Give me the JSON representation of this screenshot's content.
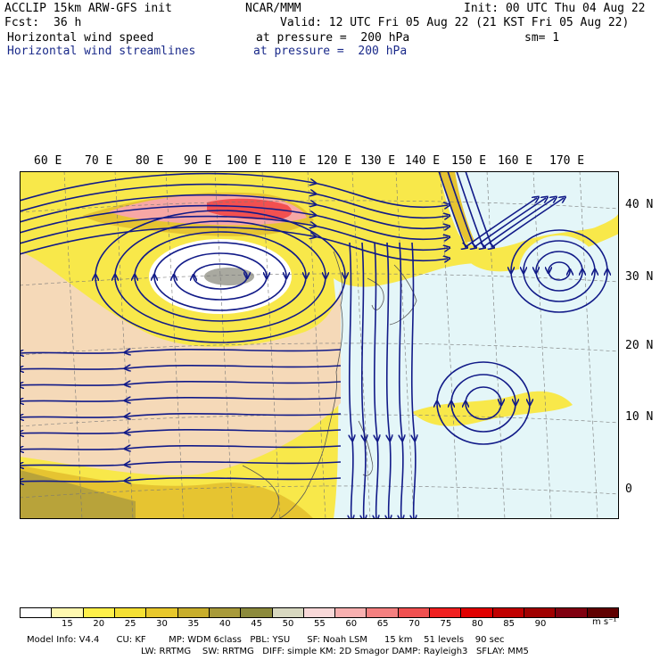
{
  "header": {
    "model": "ACCLIP 15km ARW-GFS init",
    "center": "NCAR/MMM",
    "init": "Init: 00 UTC Thu 04 Aug 22",
    "fcst_label": "Fcst:",
    "fcst_value": "36 h",
    "valid": "Valid: 12 UTC Fri 05 Aug 22 (21 KST Fri 05 Aug 22)",
    "field1_name": "Horizontal wind speed",
    "field1_level": "at pressure =  200 hPa",
    "field1_sm": "sm= 1",
    "field2_name": "Horizontal wind streamlines",
    "field2_level": "at pressure =  200 hPa"
  },
  "map": {
    "lon_labels": [
      "60 E",
      "70 E",
      "80 E",
      "90 E",
      "100 E",
      "110 E",
      "120 E",
      "130 E",
      "140 E",
      "150 E",
      "160 E",
      "170 E"
    ],
    "lat_labels": [
      "40 N",
      "30 N",
      "20 N",
      "10 N",
      "0"
    ],
    "colors": {
      "calm": "#ffffff",
      "light": "#e4f6f8",
      "tan": "#f5d9b8",
      "yellow": "#f8e84a",
      "gold": "#e6c431",
      "olive": "#b8a33a",
      "pink": "#f7a7a5",
      "red": "#f25050",
      "gray": "#a9a9a0",
      "streamline": "#111a88"
    }
  },
  "colorbar": {
    "colors": [
      "#ffffff",
      "#fff8b0",
      "#fff04a",
      "#f5e033",
      "#e8c82c",
      "#c8ae2c",
      "#a89a3a",
      "#8c8a3c",
      "#d8d8c0",
      "#f8d8d8",
      "#f8b0b0",
      "#f48080",
      "#f05050",
      "#f02020",
      "#e00000",
      "#c00000",
      "#a00000",
      "#800010",
      "#600000"
    ],
    "ticks": [
      "15",
      "20",
      "25",
      "30",
      "35",
      "40",
      "45",
      "50",
      "55",
      "60",
      "65",
      "70",
      "75",
      "80",
      "85",
      "90"
    ],
    "units": "m s⁻¹"
  },
  "footer": {
    "line1": "Model Info: V4.4      CU: KF        MP: WDM 6class   PBL: YSU      SF: Noah LSM      15 km    51 levels    90 sec",
    "line2": "LW: RRTMG    SW: RRTMG   DIFF: simple KM: 2D Smagor DAMP: Rayleigh3   SFLAY: MM5"
  }
}
